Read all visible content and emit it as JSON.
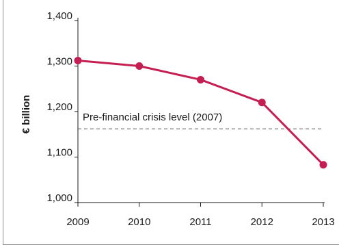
{
  "chart_data": {
    "type": "line",
    "title": "",
    "xlabel": "",
    "ylabel": "€ billion",
    "ylim": [
      1000,
      1400
    ],
    "yticks": [
      1000,
      1100,
      1200,
      1300,
      1400
    ],
    "ytick_labels": [
      "1,000",
      "1,100",
      "1,200",
      "1,300",
      "1,400"
    ],
    "categories": [
      "2009",
      "2010",
      "2011",
      "2012",
      "2013"
    ],
    "series": [
      {
        "values": [
          1312,
          1300,
          1270,
          1220,
          1083
        ]
      }
    ],
    "reference_line": {
      "value": 1162,
      "label": "Pre-financial crisis level (2007)",
      "style": "dashed"
    },
    "grid": false,
    "colors": {
      "series": "#c41e52",
      "reference": "#555555",
      "axis": "#1a1a1a"
    }
  }
}
